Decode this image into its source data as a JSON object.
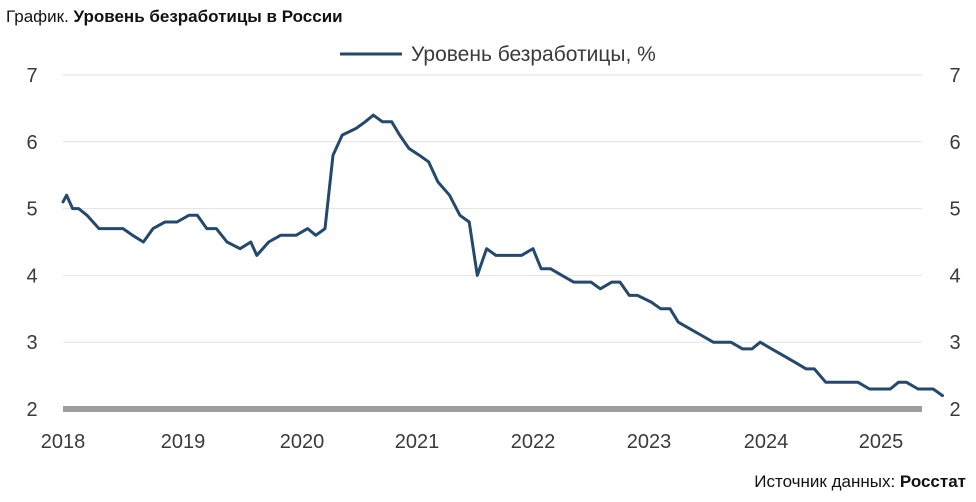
{
  "header": {
    "prefix": "График.",
    "title": "Уровень безработицы в России"
  },
  "footer": {
    "source_label": "Источник данных:",
    "source_name": "Росстат"
  },
  "colors": {
    "line": "#23496f",
    "grid": "#e2e2e2",
    "baseline": "#9e9e9e"
  },
  "chart_data": {
    "type": "line",
    "title": "Уровень безработицы в России",
    "series": [
      {
        "name": "Уровень безработицы, %",
        "points": [
          [
            2018.0,
            5.1
          ],
          [
            2018.03,
            5.2
          ],
          [
            2018.08,
            5.0
          ],
          [
            2018.13,
            5.0
          ],
          [
            2018.2,
            4.9
          ],
          [
            2018.3,
            4.7
          ],
          [
            2018.4,
            4.7
          ],
          [
            2018.5,
            4.7
          ],
          [
            2018.58,
            4.6
          ],
          [
            2018.67,
            4.5
          ],
          [
            2018.75,
            4.7
          ],
          [
            2018.85,
            4.8
          ],
          [
            2018.95,
            4.8
          ],
          [
            2019.05,
            4.9
          ],
          [
            2019.12,
            4.9
          ],
          [
            2019.2,
            4.7
          ],
          [
            2019.28,
            4.7
          ],
          [
            2019.37,
            4.5
          ],
          [
            2019.48,
            4.4
          ],
          [
            2019.57,
            4.5
          ],
          [
            2019.62,
            4.3
          ],
          [
            2019.72,
            4.5
          ],
          [
            2019.82,
            4.6
          ],
          [
            2019.95,
            4.6
          ],
          [
            2020.05,
            4.7
          ],
          [
            2020.12,
            4.6
          ],
          [
            2020.2,
            4.7
          ],
          [
            2020.27,
            5.8
          ],
          [
            2020.35,
            6.1
          ],
          [
            2020.47,
            6.2
          ],
          [
            2020.55,
            6.3
          ],
          [
            2020.62,
            6.4
          ],
          [
            2020.7,
            6.3
          ],
          [
            2020.78,
            6.3
          ],
          [
            2020.85,
            6.1
          ],
          [
            2020.93,
            5.9
          ],
          [
            2021.02,
            5.8
          ],
          [
            2021.1,
            5.7
          ],
          [
            2021.18,
            5.4
          ],
          [
            2021.28,
            5.2
          ],
          [
            2021.37,
            4.9
          ],
          [
            2021.45,
            4.8
          ],
          [
            2021.52,
            4.0
          ],
          [
            2021.6,
            4.4
          ],
          [
            2021.68,
            4.3
          ],
          [
            2021.8,
            4.3
          ],
          [
            2021.9,
            4.3
          ],
          [
            2022.0,
            4.4
          ],
          [
            2022.07,
            4.1
          ],
          [
            2022.15,
            4.1
          ],
          [
            2022.25,
            4.0
          ],
          [
            2022.35,
            3.9
          ],
          [
            2022.5,
            3.9
          ],
          [
            2022.58,
            3.8
          ],
          [
            2022.68,
            3.9
          ],
          [
            2022.75,
            3.9
          ],
          [
            2022.83,
            3.7
          ],
          [
            2022.9,
            3.7
          ],
          [
            2023.02,
            3.6
          ],
          [
            2023.1,
            3.5
          ],
          [
            2023.18,
            3.5
          ],
          [
            2023.25,
            3.3
          ],
          [
            2023.35,
            3.2
          ],
          [
            2023.45,
            3.1
          ],
          [
            2023.55,
            3.0
          ],
          [
            2023.7,
            3.0
          ],
          [
            2023.8,
            2.9
          ],
          [
            2023.88,
            2.9
          ],
          [
            2023.95,
            3.0
          ],
          [
            2024.05,
            2.9
          ],
          [
            2024.15,
            2.8
          ],
          [
            2024.25,
            2.7
          ],
          [
            2024.35,
            2.6
          ],
          [
            2024.42,
            2.6
          ],
          [
            2024.52,
            2.4
          ],
          [
            2024.62,
            2.4
          ],
          [
            2024.72,
            2.4
          ],
          [
            2024.8,
            2.4
          ],
          [
            2024.9,
            2.3
          ],
          [
            2025.0,
            2.3
          ],
          [
            2025.08,
            2.3
          ],
          [
            2025.15,
            2.4
          ],
          [
            2025.22,
            2.4
          ],
          [
            2025.32,
            2.3
          ],
          [
            2025.4,
            2.3
          ],
          [
            2025.45,
            2.3
          ],
          [
            2025.53,
            2.2
          ]
        ]
      }
    ],
    "x_ticks": [
      "2018",
      "2019",
      "2020",
      "2021",
      "2022",
      "2023",
      "2024",
      "2025"
    ],
    "y_ticks": [
      "2",
      "3",
      "4",
      "5",
      "6",
      "7"
    ],
    "xlim": [
      2018,
      2025.55
    ],
    "ylim": [
      2,
      7
    ],
    "y_axis_sides": [
      "left",
      "right"
    ],
    "grid": true,
    "legend_position": "top-center"
  }
}
